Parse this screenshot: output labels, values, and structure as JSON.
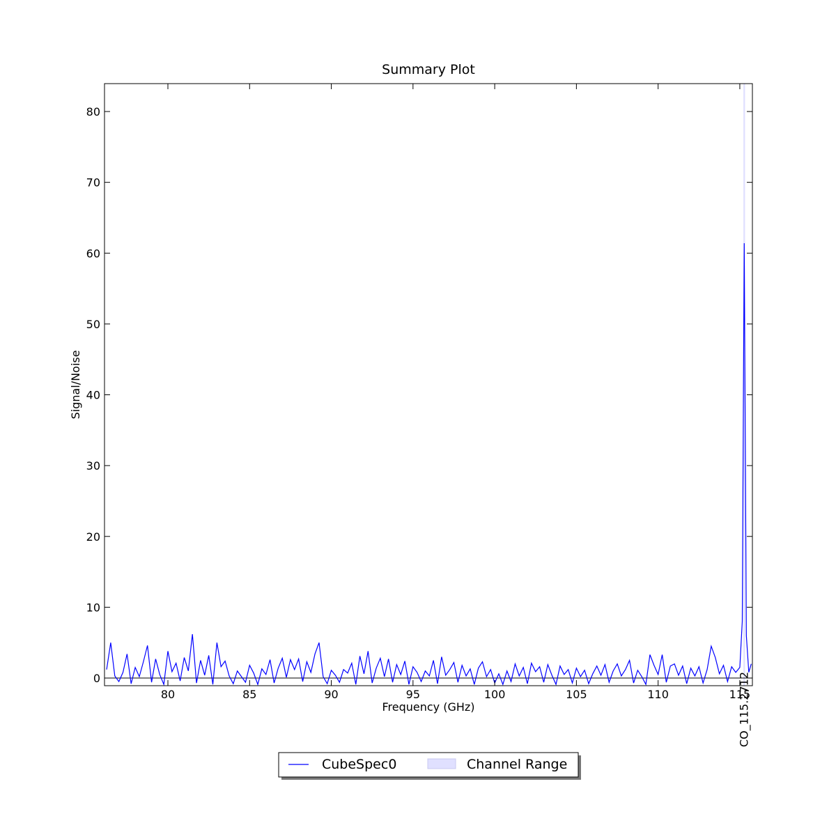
{
  "chart_data": {
    "type": "line",
    "title": "Summary Plot",
    "xlabel": "Frequency (GHz)",
    "ylabel": "Signal/Noise",
    "xlim": [
      76.12,
      115.77
    ],
    "ylim": [
      -1.08,
      83.94
    ],
    "xticks": [
      80,
      85,
      90,
      95,
      100,
      105,
      110,
      115
    ],
    "yticks": [
      0,
      10,
      20,
      30,
      40,
      50,
      60,
      70,
      80
    ],
    "grid": false,
    "x": [
      76.25,
      76.5,
      76.75,
      77,
      77.25,
      77.5,
      77.75,
      78,
      78.25,
      78.5,
      78.75,
      79,
      79.25,
      79.5,
      79.75,
      80,
      80.25,
      80.5,
      80.75,
      81,
      81.25,
      81.5,
      81.75,
      82,
      82.25,
      82.5,
      82.75,
      83,
      83.25,
      83.5,
      83.75,
      84,
      84.25,
      84.5,
      84.75,
      85,
      85.25,
      85.5,
      85.75,
      86,
      86.25,
      86.5,
      86.75,
      87,
      87.25,
      87.5,
      87.75,
      88,
      88.25,
      88.5,
      88.75,
      89,
      89.25,
      89.5,
      89.75,
      90,
      90.25,
      90.5,
      90.75,
      91,
      91.25,
      91.5,
      91.75,
      92,
      92.25,
      92.5,
      92.75,
      93,
      93.25,
      93.5,
      93.75,
      94,
      94.25,
      94.5,
      94.75,
      95,
      95.25,
      95.5,
      95.75,
      96,
      96.25,
      96.5,
      96.75,
      97,
      97.25,
      97.5,
      97.75,
      98,
      98.25,
      98.5,
      98.75,
      99,
      99.25,
      99.5,
      99.75,
      100,
      100.25,
      100.5,
      100.75,
      101,
      101.25,
      101.5,
      101.75,
      102,
      102.25,
      102.5,
      102.75,
      103,
      103.25,
      103.5,
      103.75,
      104,
      104.25,
      104.5,
      104.75,
      105,
      105.25,
      105.5,
      105.75,
      106,
      106.25,
      106.5,
      106.75,
      107,
      107.25,
      107.5,
      107.75,
      108,
      108.25,
      108.5,
      108.75,
      109,
      109.25,
      109.5,
      109.75,
      110,
      110.25,
      110.5,
      110.75,
      111,
      111.25,
      111.5,
      111.75,
      112,
      112.25,
      112.5,
      112.75,
      113,
      113.25,
      113.5,
      113.75,
      114,
      114.25,
      114.5,
      114.75,
      115,
      115.15,
      115.22,
      115.27,
      115.32,
      115.4,
      115.55,
      115.7
    ],
    "series": [
      {
        "name": "CubeSpec0",
        "color": "#0000ff",
        "values": [
          1.2,
          5.0,
          0.3,
          -0.5,
          0.8,
          3.4,
          -0.8,
          1.5,
          0.2,
          2.3,
          4.6,
          -0.6,
          2.7,
          0.5,
          -0.9,
          3.8,
          0.9,
          2.1,
          -0.4,
          2.9,
          1.0,
          6.2,
          -0.7,
          2.5,
          0.4,
          3.2,
          -0.9,
          5.0,
          1.6,
          2.4,
          0.3,
          -0.8,
          1.0,
          0.2,
          -0.6,
          1.8,
          0.7,
          -0.9,
          1.3,
          0.5,
          2.6,
          -0.7,
          1.4,
          2.8,
          0.1,
          2.6,
          1.2,
          2.7,
          -0.5,
          2.3,
          0.8,
          3.4,
          5.0,
          0.2,
          -0.8,
          1.1,
          0.4,
          -0.6,
          1.2,
          0.7,
          2.1,
          -0.9,
          3.1,
          0.6,
          3.8,
          -0.7,
          1.4,
          2.8,
          0.2,
          2.7,
          -0.6,
          1.9,
          0.5,
          2.4,
          -0.9,
          1.6,
          0.8,
          -0.5,
          1.0,
          0.3,
          2.5,
          -0.8,
          3.0,
          0.4,
          1.2,
          2.2,
          -0.6,
          1.8,
          0.3,
          1.3,
          -0.9,
          1.4,
          2.3,
          0.2,
          1.2,
          -0.7,
          0.6,
          -0.9,
          1.0,
          -0.5,
          2.0,
          0.3,
          1.5,
          -0.8,
          2.1,
          0.9,
          1.6,
          -0.6,
          1.9,
          0.4,
          -0.9,
          1.7,
          0.5,
          1.2,
          -0.7,
          1.4,
          0.2,
          1.1,
          -0.8,
          0.6,
          1.7,
          0.4,
          1.9,
          -0.6,
          1.0,
          2.0,
          0.3,
          1.2,
          2.5,
          -0.7,
          1.1,
          0.2,
          -0.9,
          3.3,
          1.8,
          0.5,
          3.3,
          -0.6,
          1.7,
          2.0,
          0.4,
          1.7,
          -0.8,
          1.4,
          0.3,
          1.6,
          -0.7,
          1.2,
          4.5,
          2.9,
          0.6,
          1.8,
          -0.5,
          1.6,
          0.8,
          1.5,
          8,
          40,
          61.4,
          40,
          6,
          0.8,
          2.0
        ]
      }
    ],
    "bands": [
      {
        "name": "Channel Range",
        "color": "#e0e0ff",
        "range": [
          115.22,
          115.32
        ]
      }
    ],
    "hlines": [
      0
    ],
    "annotations": [
      {
        "text": "CO_115.2712",
        "x": 115.2712
      }
    ],
    "legend": "lower center"
  }
}
